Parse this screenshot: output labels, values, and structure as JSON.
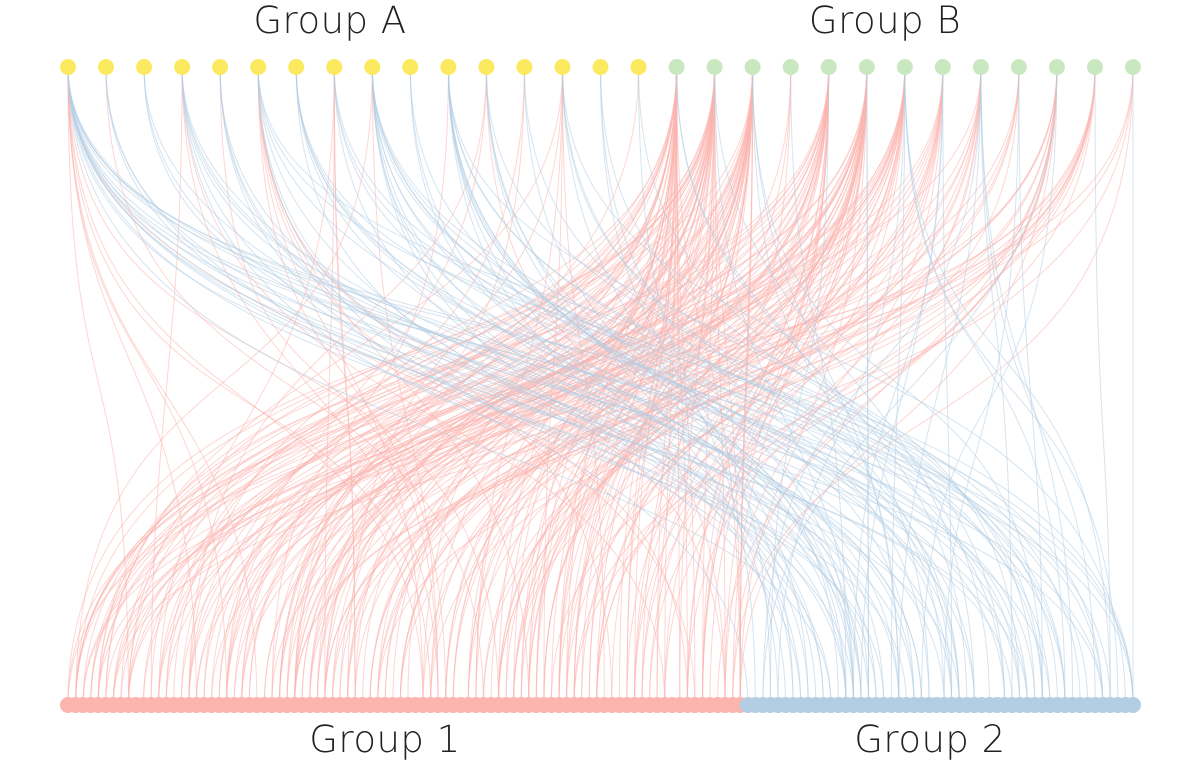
{
  "labels": {
    "group_a": "Group A",
    "group_b": "Group B",
    "group_1": "Group 1",
    "group_2": "Group 2"
  },
  "colors": {
    "group_a_node": "#fbe95f",
    "group_b_node": "#c9e8c0",
    "group_1_node": "#fbb4ae",
    "group_2_node": "#b3cde3",
    "link_to_group_1": "#fbb4ae",
    "link_to_group_2": "#b3cde3",
    "background": "#ffffff"
  },
  "nodes": {
    "group_a_count": 16,
    "group_b_count": 13,
    "group_1_count": 90,
    "group_2_count": 52
  },
  "links": {
    "group_a": {
      "to_group_1": [
        8,
        1,
        0,
        3,
        1,
        6,
        0,
        4,
        2,
        0,
        1,
        3,
        2,
        5,
        0,
        1
      ],
      "to_group_2": [
        16,
        3,
        3,
        6,
        4,
        6,
        6,
        4,
        11,
        3,
        10,
        4,
        2,
        4,
        3,
        2
      ]
    },
    "group_b": {
      "to_group_1": [
        38,
        36,
        34,
        3,
        26,
        32,
        20,
        12,
        9,
        5,
        12,
        10,
        4
      ],
      "to_group_2": [
        2,
        2,
        3,
        1,
        1,
        2,
        5,
        3,
        5,
        2,
        2,
        1,
        1
      ]
    }
  }
}
